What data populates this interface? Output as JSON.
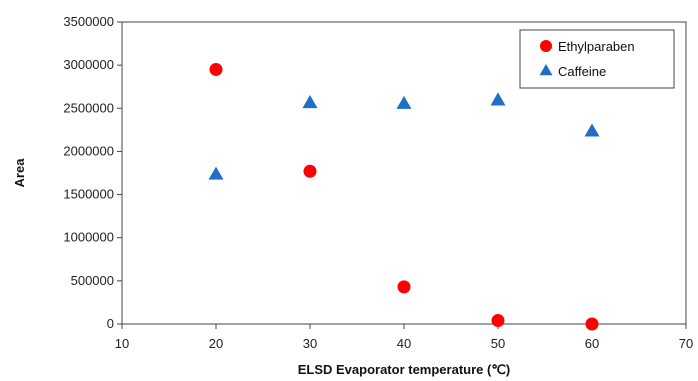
{
  "chart_data": {
    "type": "scatter",
    "xlabel": "ELSD Evaporator temperature (℃)",
    "ylabel": "Area",
    "xlim": [
      10,
      70
    ],
    "ylim": [
      0,
      3500000
    ],
    "xticks": [
      "10",
      "20",
      "30",
      "40",
      "50",
      "60",
      "70"
    ],
    "yticks": [
      "0",
      "500000",
      "1000000",
      "1500000",
      "2000000",
      "2500000",
      "3000000",
      "3500000"
    ],
    "grid": false,
    "legend_position": "top-right",
    "series": [
      {
        "name": "Ethylparaben",
        "marker": "circle",
        "color": "#ff0000",
        "x": [
          20,
          30,
          40,
          50,
          60
        ],
        "y": [
          2950000,
          1770000,
          430000,
          40000,
          0
        ]
      },
      {
        "name": "Caffeine",
        "marker": "triangle",
        "color": "#1f6fc5",
        "x": [
          20,
          30,
          40,
          50,
          60
        ],
        "y": [
          1730000,
          2560000,
          2550000,
          2590000,
          2230000
        ]
      }
    ]
  }
}
